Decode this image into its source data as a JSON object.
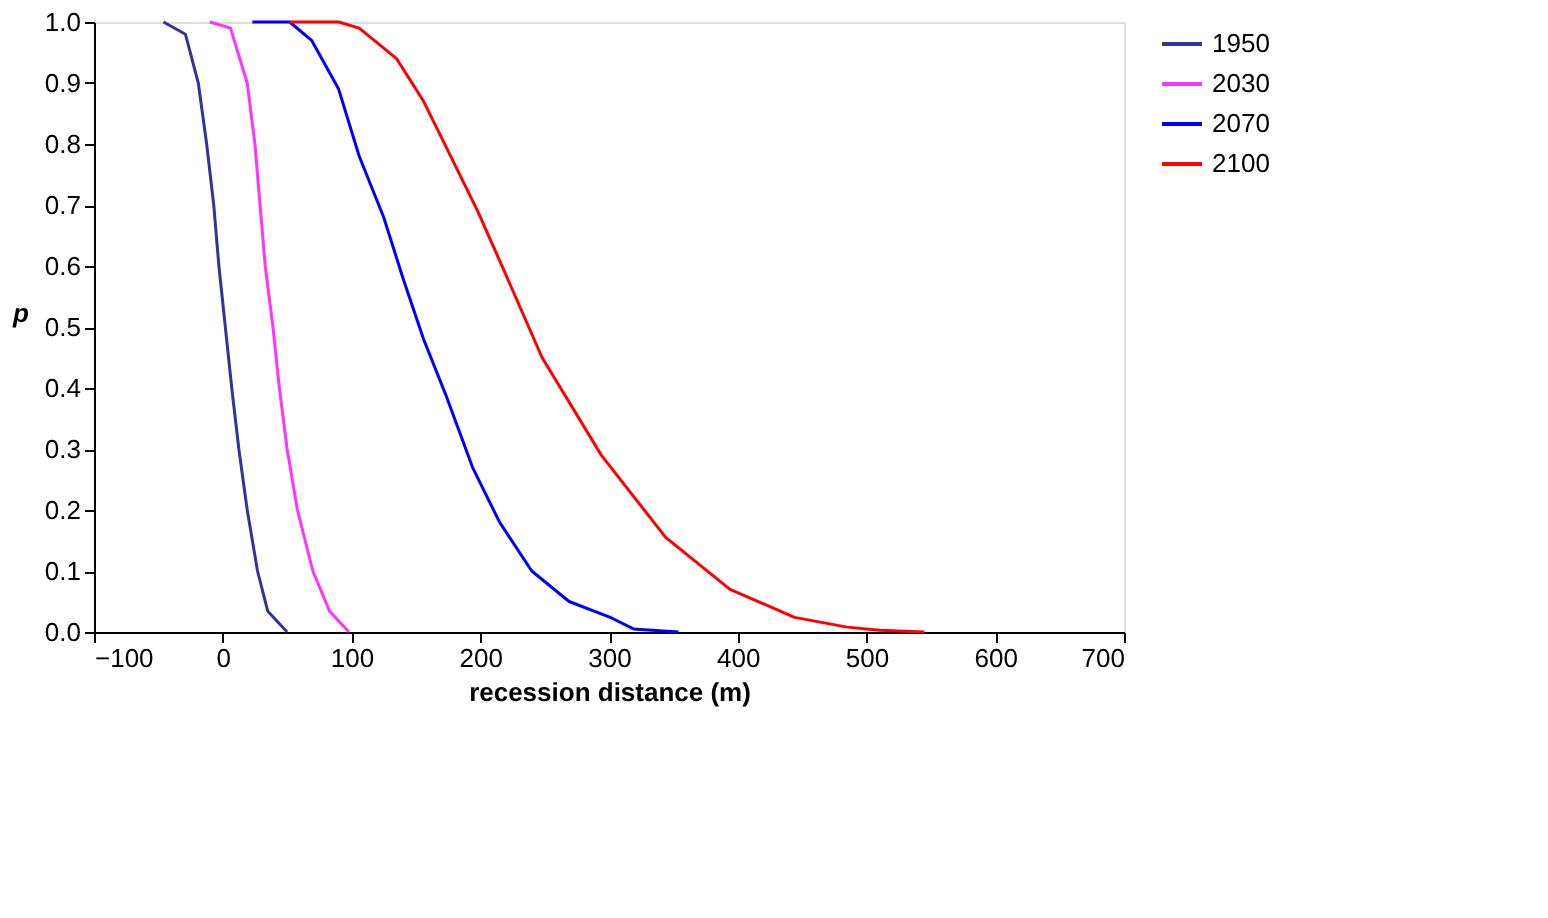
{
  "chart_data": {
    "type": "line",
    "xlabel": "recession distance (m)",
    "ylabel": "p",
    "xlim": [
      -100,
      700
    ],
    "xticks": [
      -100,
      0,
      100,
      200,
      300,
      400,
      500,
      600,
      700
    ],
    "ylim": [
      0,
      1
    ],
    "yticks": [
      {
        "value": 0,
        "label": "0.0"
      },
      {
        "value": 0.1,
        "label": "0.1"
      },
      {
        "value": 0.2,
        "label": "0.2"
      },
      {
        "value": 0.3,
        "label": "0.3"
      },
      {
        "value": 0.4,
        "label": "0.4"
      },
      {
        "value": 0.5,
        "label": "0.5"
      },
      {
        "value": 0.6,
        "label": "0.6"
      },
      {
        "value": 0.7,
        "label": "0.7"
      },
      {
        "value": 0.8,
        "label": "0.8"
      },
      {
        "value": 0.9,
        "label": "0.9"
      },
      {
        "value": 1,
        "label": "1.0"
      }
    ],
    "grid": false,
    "legend": "right",
    "marker": "none",
    "line_style": "solid",
    "series": [
      {
        "name": "1950",
        "color": "#333399",
        "x": [
          -46,
          -29,
          -19,
          -12.5,
          -7,
          -3,
          2,
          7,
          12.5,
          19,
          27,
          35,
          50
        ],
        "values": [
          1.0,
          0.98,
          0.9,
          0.8,
          0.7,
          0.6,
          0.5,
          0.4,
          0.3,
          0.2,
          0.1,
          0.034,
          0.0
        ]
      },
      {
        "name": "2030",
        "color": "#ff33ff",
        "x": [
          -10,
          6,
          19,
          25,
          29,
          33,
          39,
          44,
          50,
          58,
          70,
          83,
          98
        ],
        "values": [
          1.0,
          0.99,
          0.9,
          0.8,
          0.7,
          0.6,
          0.5,
          0.4,
          0.3,
          0.2,
          0.1,
          0.034,
          0.0
        ]
      },
      {
        "name": "2070",
        "color": "#0000ff",
        "x": [
          23,
          52,
          69,
          90,
          106,
          125,
          140,
          156,
          173,
          194,
          215,
          240,
          269,
          302,
          319,
          354
        ],
        "values": [
          1.0,
          1.0,
          0.97,
          0.89,
          0.78,
          0.68,
          0.58,
          0.48,
          0.39,
          0.27,
          0.18,
          0.1,
          0.05,
          0.023,
          0.005,
          0.0
        ]
      },
      {
        "name": "2100",
        "color": "#ff0000",
        "x": [
          52,
          90,
          106,
          135,
          156,
          177,
          198,
          219,
          248,
          294,
          344,
          394,
          444,
          485,
          510,
          545
        ],
        "values": [
          1.0,
          1.0,
          0.99,
          0.94,
          0.87,
          0.78,
          0.69,
          0.59,
          0.45,
          0.29,
          0.155,
          0.07,
          0.024,
          0.008,
          0.003,
          0.0
        ]
      }
    ]
  }
}
